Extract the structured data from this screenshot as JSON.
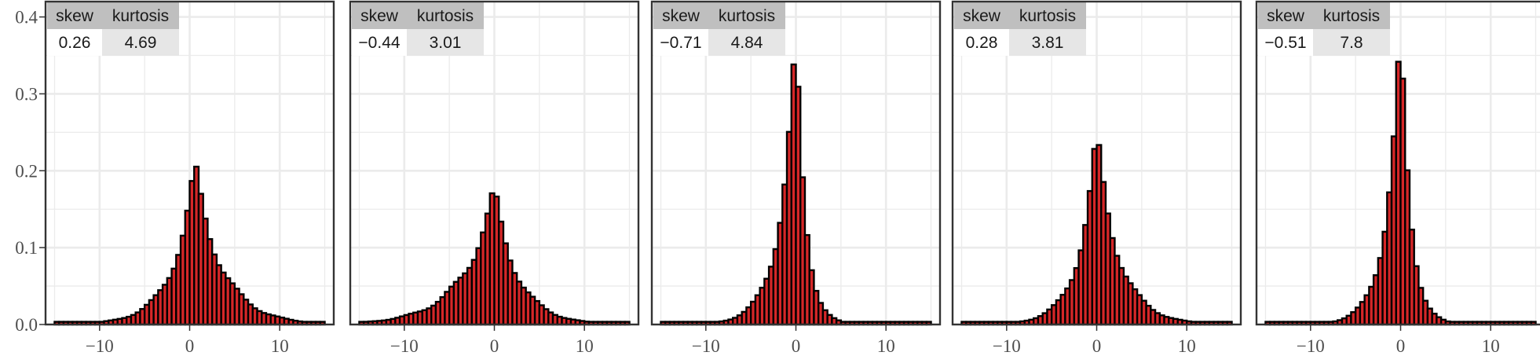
{
  "chart_data": {
    "type": "bar",
    "layout": "facets",
    "xlim": [
      -16,
      16
    ],
    "ylim": [
      0,
      0.42
    ],
    "x_ticks": [
      -10,
      0,
      10
    ],
    "x_tick_labels": [
      "−10",
      "0",
      "10"
    ],
    "y_ticks": [
      0.0,
      0.1,
      0.2,
      0.3,
      0.4
    ],
    "y_tick_labels": [
      "0.0",
      "0.1",
      "0.2",
      "0.3",
      "0.4"
    ],
    "grid": true,
    "bar_color": "#d62728",
    "bar_outline": "#000000",
    "table_header_color": "#bfbfbf",
    "table_value_color": "#e6e6e6",
    "table_header": [
      "skew",
      "kurtosis"
    ],
    "facets": [
      {
        "skew": "0.26",
        "kurtosis": "4.69",
        "peak": 0.2,
        "scale": 3.2,
        "shift": 0.6,
        "skew_value": 0.26
      },
      {
        "skew": "−0.44",
        "kurtosis": "3.01",
        "peak": 0.17,
        "scale": 3.6,
        "shift": 0.0,
        "skew_value": -0.44
      },
      {
        "skew": "−0.71",
        "kurtosis": "4.84",
        "peak": 0.36,
        "scale": 1.7,
        "shift": 0.0,
        "skew_value": -0.71
      },
      {
        "skew": "0.28",
        "kurtosis": "3.81",
        "peak": 0.24,
        "scale": 2.6,
        "shift": 0.0,
        "skew_value": 0.28
      },
      {
        "skew": "−0.51",
        "kurtosis": "7.8",
        "peak": 0.37,
        "scale": 1.6,
        "shift": 0.0,
        "skew_value": -0.51
      }
    ]
  }
}
